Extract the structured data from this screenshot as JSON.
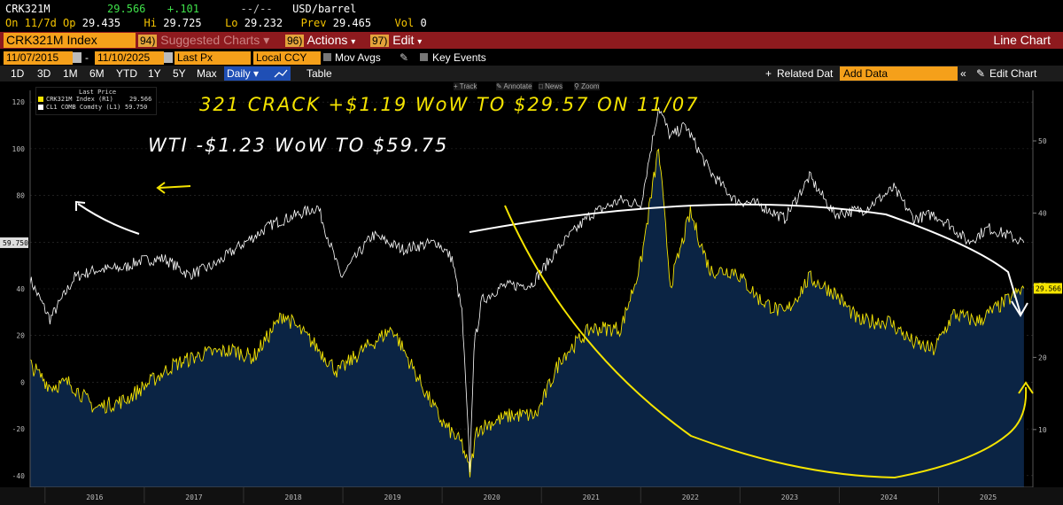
{
  "quote": {
    "ticker": "CRK321M",
    "last": "29.566",
    "change": "+.101",
    "dashes": "--/--",
    "unit": "USD/barrel",
    "on_label": "On 11/7d",
    "op_label": "Op",
    "op": "29.435",
    "hi_label": "Hi",
    "hi": "29.725",
    "lo_label": "Lo",
    "lo": "29.232",
    "prev_label": "Prev",
    "prev": "29.465",
    "vol_label": "Vol",
    "vol": "0"
  },
  "toolbar": {
    "security": "CRK321M Index",
    "suggested_num": "94)",
    "suggested": "Suggested Charts",
    "actions_num": "96)",
    "actions": "Actions",
    "edit_num": "97)",
    "edit": "Edit",
    "chart_type": "Line Chart"
  },
  "range": {
    "start": "11/07/2015",
    "sep": "-",
    "end": "11/10/2025",
    "field": "Last Px",
    "ccy": "Local CCY",
    "mov_avgs": "Mov Avgs",
    "key_events": "Key Events"
  },
  "periods": [
    "1D",
    "3D",
    "1M",
    "6M",
    "YTD",
    "1Y",
    "5Y",
    "Max"
  ],
  "period_select": "Daily",
  "table_label": "Table",
  "related_label": "Related Dat",
  "add_data": "Add Data",
  "edit_chart": "Edit Chart",
  "chart_tools": [
    "Track",
    "Annotate",
    "News",
    "Zoom"
  ],
  "legend": {
    "header": "Last Price",
    "items": [
      {
        "name": "CRK321M Index (R1)",
        "value": "29.566",
        "color": "#f5e400"
      },
      {
        "name": "CL1 COMB Comdty (L1)",
        "value": "59.750",
        "color": "#ffffff"
      }
    ]
  },
  "annotations": {
    "crack": "321 CRACK +$1.19 WoW TO $29.57 ON 11/07",
    "wti": "WTI -$1.23 WoW TO $59.75"
  },
  "chart_data": {
    "type": "line",
    "x_ticks": [
      "2016",
      "2017",
      "2018",
      "2019",
      "2020",
      "2021",
      "2022",
      "2023",
      "2024",
      "2025"
    ],
    "left_axis": {
      "ticks": [
        -40,
        -20,
        0,
        20,
        40,
        60,
        80,
        100,
        120
      ],
      "range": [
        -45,
        125
      ],
      "current": "59.750"
    },
    "right_axis": {
      "ticks": [
        10,
        20,
        30,
        40,
        50
      ],
      "range": [
        2,
        57
      ],
      "current": "29.566"
    },
    "series": [
      {
        "name": "CL1 COMB Comdty (L1)",
        "axis": "left",
        "color": "#ffffff",
        "x": [
          2015.85,
          2016.05,
          2016.3,
          2016.5,
          2016.8,
          2016.95,
          2017.2,
          2017.45,
          2017.7,
          2017.95,
          2018.3,
          2018.75,
          2018.98,
          2019.3,
          2019.6,
          2019.95,
          2020.1,
          2020.2,
          2020.28,
          2020.32,
          2020.4,
          2020.6,
          2020.9,
          2021.2,
          2021.5,
          2021.8,
          2022.0,
          2022.18,
          2022.3,
          2022.45,
          2022.7,
          2022.95,
          2023.2,
          2023.45,
          2023.7,
          2023.95,
          2024.25,
          2024.55,
          2024.75,
          2024.95,
          2025.1,
          2025.3,
          2025.5,
          2025.7,
          2025.86
        ],
        "y": [
          44,
          27,
          45,
          48,
          49,
          52,
          53,
          46,
          50,
          58,
          68,
          75,
          45,
          63,
          57,
          60,
          53,
          30,
          -37,
          15,
          35,
          41,
          42,
          59,
          72,
          78,
          76,
          118,
          105,
          110,
          90,
          78,
          76,
          70,
          88,
          72,
          74,
          83,
          70,
          72,
          68,
          60,
          66,
          63,
          59.75
        ]
      },
      {
        "name": "CRK321M Index (R1)",
        "axis": "right",
        "color": "#f5e400",
        "x": [
          2015.85,
          2016.05,
          2016.25,
          2016.5,
          2016.8,
          2017.0,
          2017.3,
          2017.6,
          2017.9,
          2018.1,
          2018.4,
          2018.7,
          2018.95,
          2019.2,
          2019.5,
          2019.8,
          2020.0,
          2020.2,
          2020.28,
          2020.35,
          2020.5,
          2020.7,
          2020.95,
          2021.2,
          2021.5,
          2021.8,
          2022.0,
          2022.18,
          2022.3,
          2022.5,
          2022.7,
          2022.95,
          2023.2,
          2023.45,
          2023.7,
          2023.95,
          2024.2,
          2024.5,
          2024.75,
          2024.95,
          2025.15,
          2025.4,
          2025.6,
          2025.86
        ],
        "y": [
          19,
          16,
          16.5,
          13,
          14,
          16,
          19,
          20.5,
          21,
          20,
          26,
          22,
          18,
          21,
          24,
          16,
          11,
          8,
          4,
          10,
          11,
          12,
          12,
          20,
          24,
          24,
          33,
          49,
          30,
          40,
          32,
          32,
          28,
          26,
          31,
          29,
          25,
          25,
          22,
          21,
          26,
          25,
          27,
          29.566
        ]
      }
    ],
    "shading": "area under CRK321M series"
  }
}
